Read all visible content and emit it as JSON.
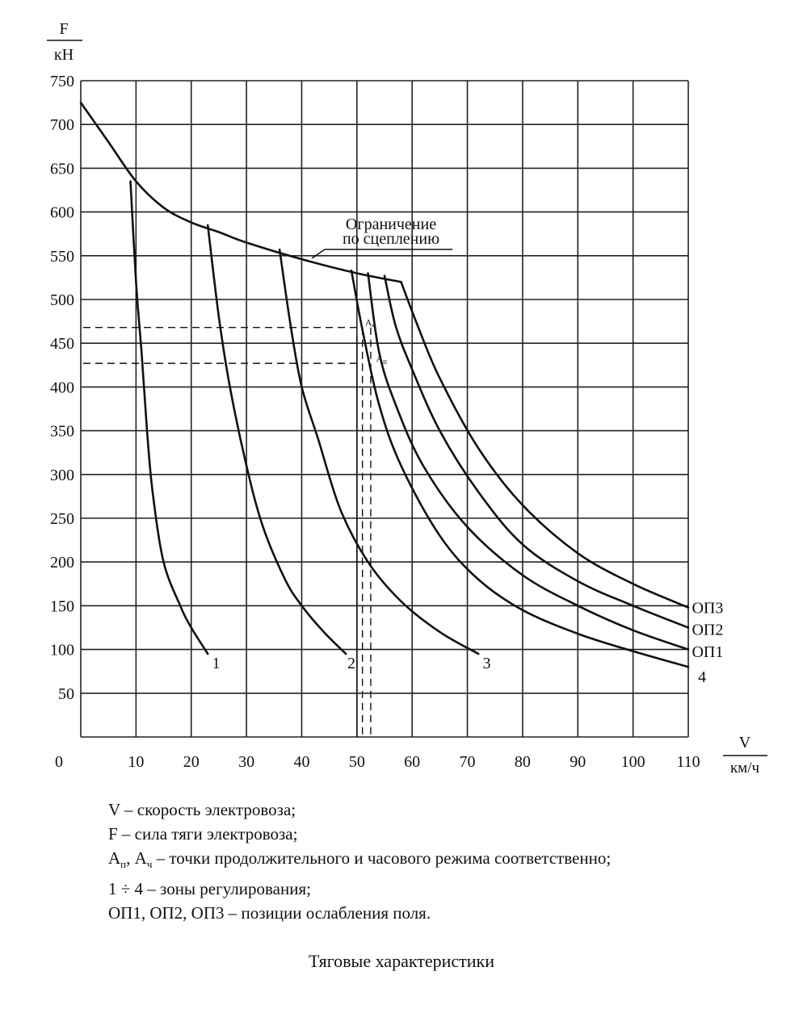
{
  "chart_data": {
    "type": "line",
    "title": "",
    "y_axis": {
      "label_top": "F",
      "label_bottom": "кН",
      "ylim": [
        0,
        750
      ],
      "ticks": [
        "50",
        "100",
        "150",
        "200",
        "250",
        "300",
        "350",
        "400",
        "450",
        "500",
        "550",
        "600",
        "650",
        "700",
        "750"
      ]
    },
    "x_axis": {
      "label_top": "V",
      "label_bottom": "км/ч",
      "xlim": [
        0,
        110
      ],
      "origin_label": "0",
      "ticks": [
        "10",
        "20",
        "30",
        "40",
        "50",
        "60",
        "70",
        "80",
        "90",
        "100",
        "110"
      ]
    },
    "grid": true,
    "limit_label_line1": "Ограничение",
    "limit_label_line2": "по сцеплению",
    "series": [
      {
        "name": "Ограничение по сцеплению",
        "points": [
          [
            0,
            725
          ],
          [
            5,
            680
          ],
          [
            10,
            635
          ],
          [
            15,
            605
          ],
          [
            20,
            588
          ],
          [
            25,
            577
          ],
          [
            30,
            565
          ],
          [
            40,
            546
          ],
          [
            50,
            530
          ],
          [
            58,
            520
          ]
        ]
      },
      {
        "name": "1",
        "points": [
          [
            9,
            635
          ],
          [
            10,
            520
          ],
          [
            11,
            440
          ],
          [
            12,
            350
          ],
          [
            13,
            280
          ],
          [
            15,
            200
          ],
          [
            18,
            150
          ],
          [
            20,
            125
          ],
          [
            23,
            95
          ]
        ]
      },
      {
        "name": "2",
        "points": [
          [
            23,
            585
          ],
          [
            25,
            480
          ],
          [
            27,
            400
          ],
          [
            30,
            310
          ],
          [
            33,
            240
          ],
          [
            37,
            180
          ],
          [
            40,
            150
          ],
          [
            44,
            120
          ],
          [
            48,
            95
          ]
        ]
      },
      {
        "name": "3",
        "points": [
          [
            36,
            557
          ],
          [
            38,
            470
          ],
          [
            40,
            400
          ],
          [
            43,
            340
          ],
          [
            47,
            260
          ],
          [
            52,
            200
          ],
          [
            58,
            155
          ],
          [
            65,
            120
          ],
          [
            72,
            95
          ]
        ]
      },
      {
        "name": "4",
        "points": [
          [
            49,
            533
          ],
          [
            51,
            465
          ],
          [
            54,
            380
          ],
          [
            58,
            310
          ],
          [
            65,
            230
          ],
          [
            72,
            180
          ],
          [
            80,
            145
          ],
          [
            90,
            118
          ],
          [
            100,
            98
          ],
          [
            110,
            80
          ]
        ]
      },
      {
        "name": "ОП1",
        "points": [
          [
            52,
            530
          ],
          [
            54,
            440
          ],
          [
            57,
            380
          ],
          [
            62,
            310
          ],
          [
            70,
            240
          ],
          [
            80,
            185
          ],
          [
            90,
            150
          ],
          [
            100,
            122
          ],
          [
            110,
            100
          ]
        ]
      },
      {
        "name": "ОП2",
        "points": [
          [
            55,
            527
          ],
          [
            57,
            470
          ],
          [
            60,
            420
          ],
          [
            65,
            350
          ],
          [
            72,
            280
          ],
          [
            80,
            220
          ],
          [
            90,
            178
          ],
          [
            100,
            150
          ],
          [
            110,
            125
          ]
        ]
      },
      {
        "name": "ОП3",
        "points": [
          [
            58,
            520
          ],
          [
            61,
            470
          ],
          [
            65,
            410
          ],
          [
            72,
            330
          ],
          [
            80,
            265
          ],
          [
            90,
            210
          ],
          [
            100,
            175
          ],
          [
            110,
            148
          ]
        ]
      }
    ],
    "curve_labels": [
      {
        "text": "1",
        "x": 24.5,
        "y": 85
      },
      {
        "text": "2",
        "x": 49,
        "y": 85
      },
      {
        "text": "3",
        "x": 73.5,
        "y": 85
      },
      {
        "text": "ОП3",
        "x": 113.5,
        "y": 148
      },
      {
        "text": "ОП2",
        "x": 113.5,
        "y": 123
      },
      {
        "text": "ОП1",
        "x": 113.5,
        "y": 98
      },
      {
        "text": "4",
        "x": 112.5,
        "y": 69
      }
    ],
    "points_marked": [
      {
        "name": "Aч",
        "v": 50,
        "f": 468
      },
      {
        "name": "Aп",
        "v": 52,
        "f": 427
      }
    ],
    "dashed_guides": {
      "y_levels": [
        468,
        427
      ],
      "x_values": [
        51,
        52.5
      ],
      "solid_x": 50
    }
  },
  "legend": {
    "line1": "V – скорость электровоза;",
    "line2": "F – сила тяги электровоза;",
    "line3_a": "A",
    "line3_sub1": "п",
    "line3_b": ", A",
    "line3_sub2": "ч",
    "line3_c": " – точки продолжительного и часового режима соответственно;",
    "line4": "1 ÷ 4 – зоны регулирования;",
    "line5": "ОП1, ОП2, ОП3 – позиции ослабления поля."
  },
  "caption": "Тяговые характеристики"
}
